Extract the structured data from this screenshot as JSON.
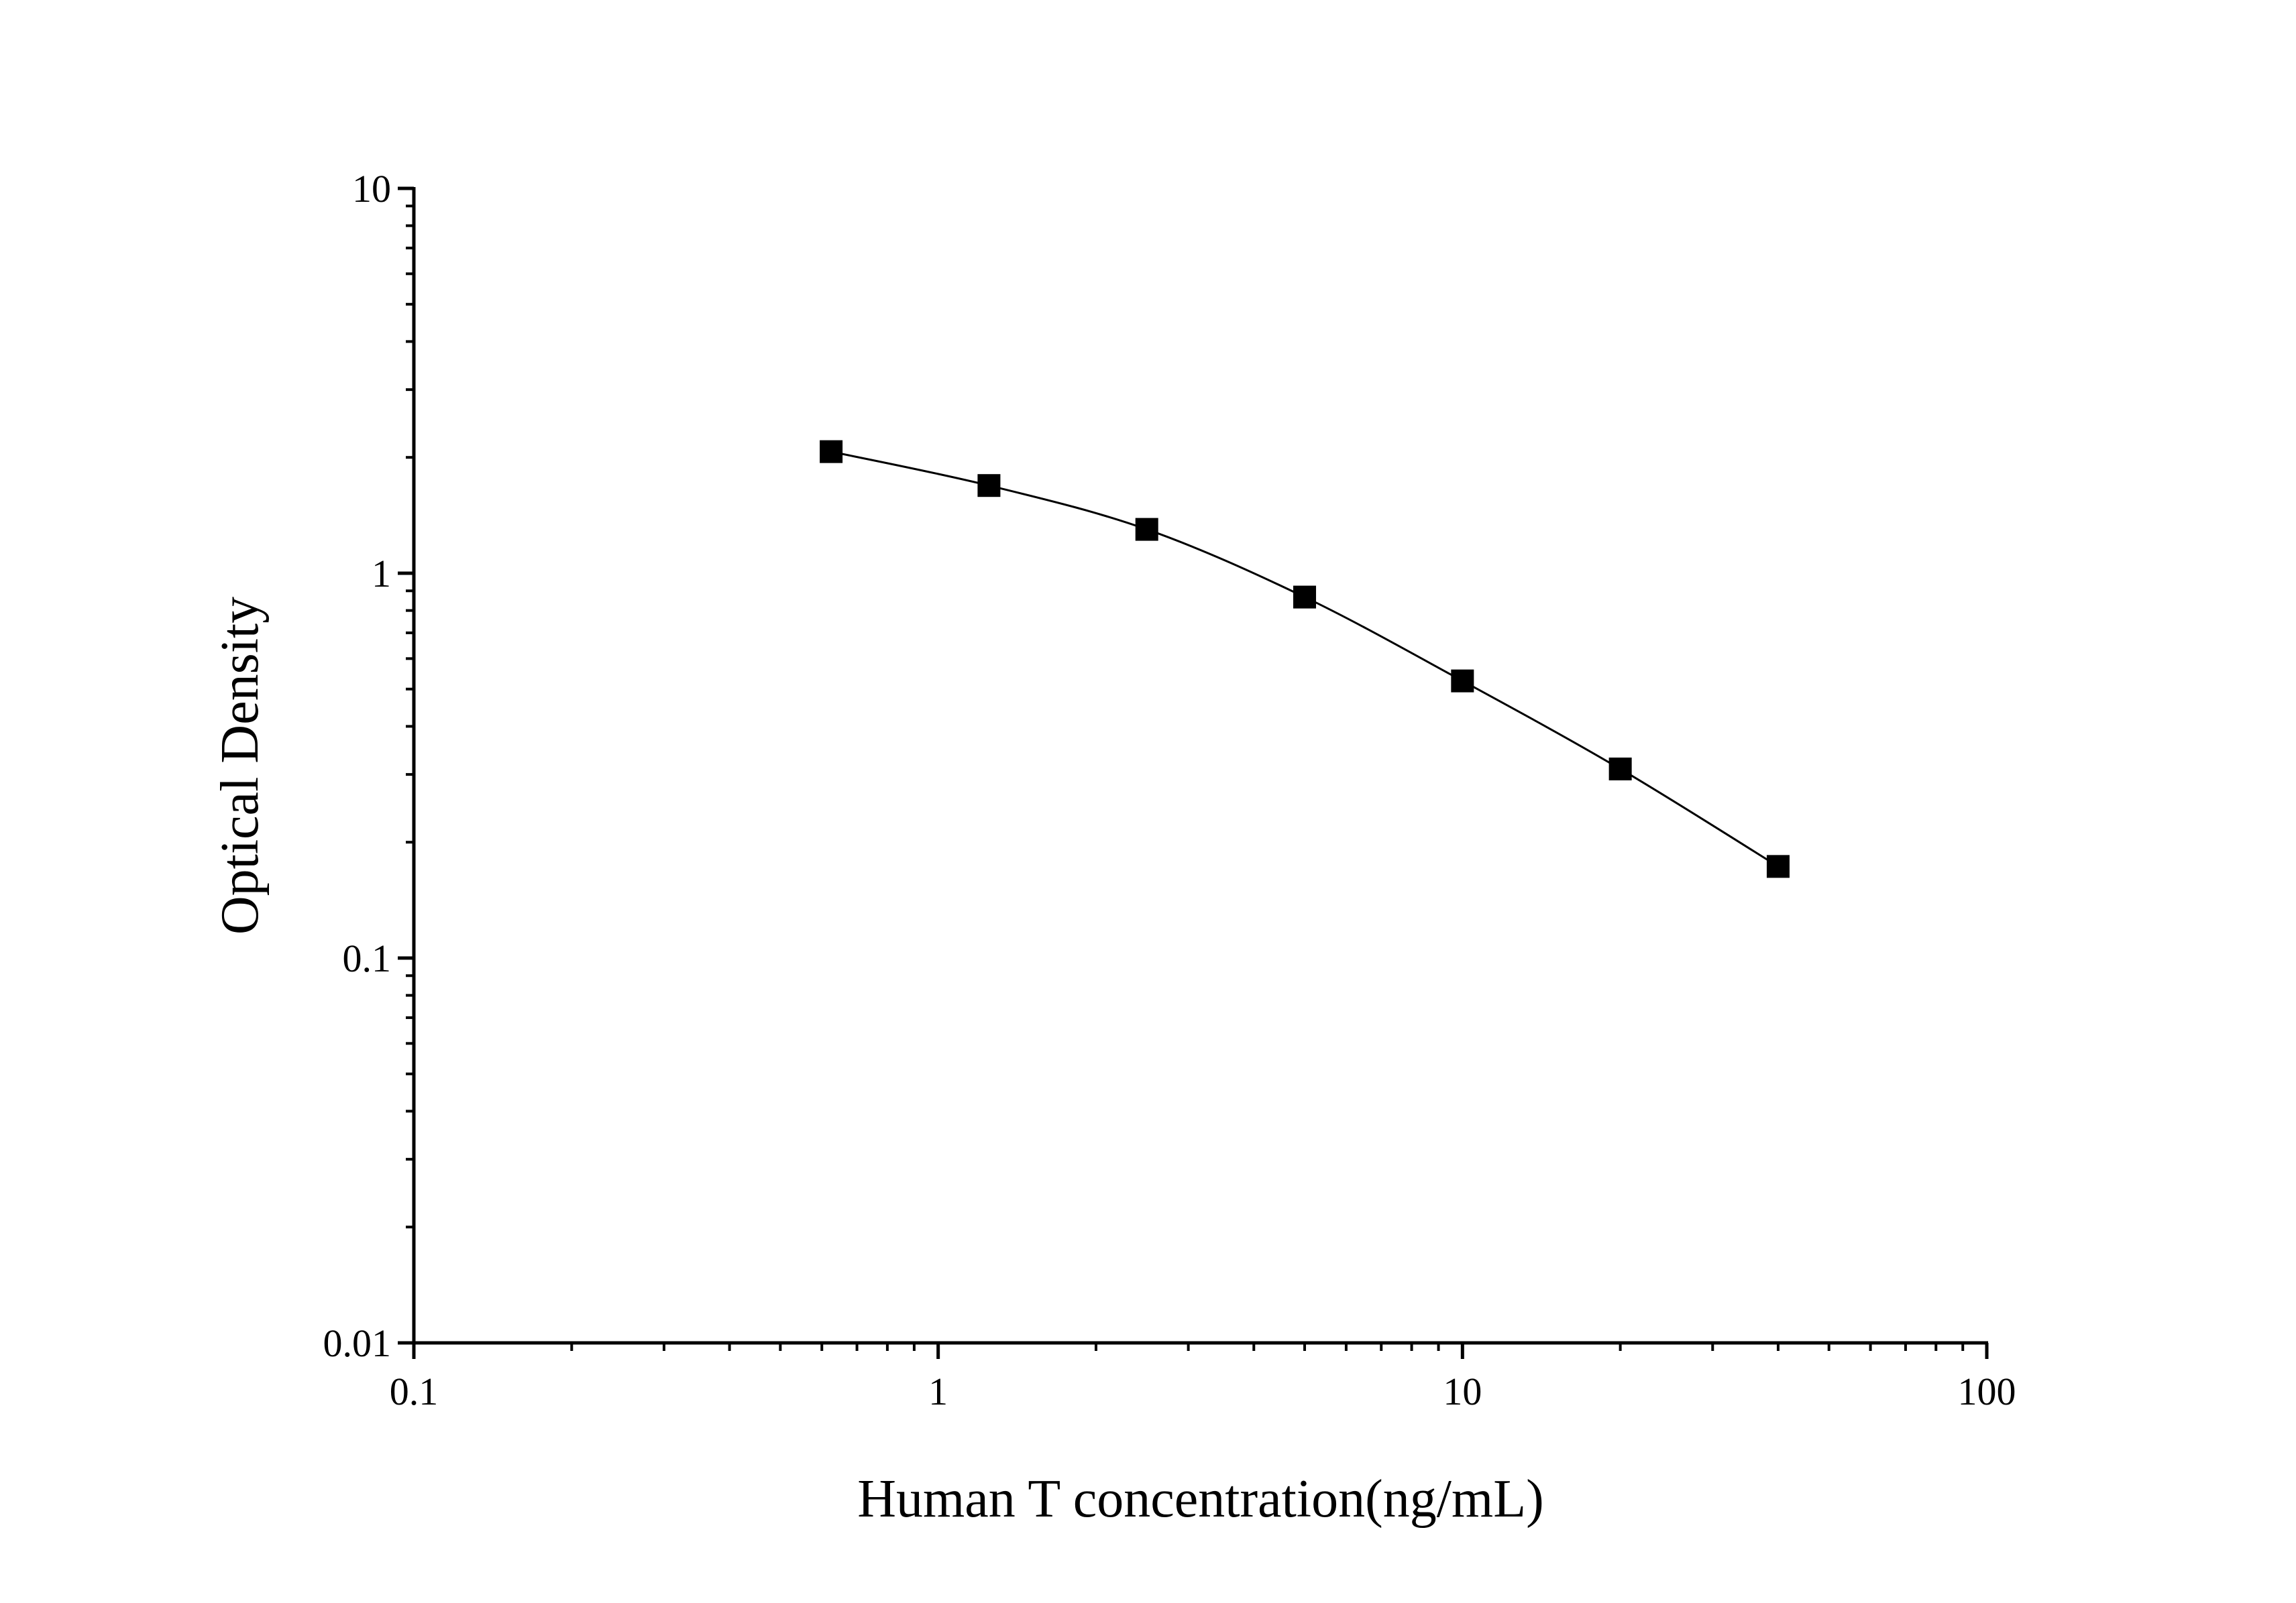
{
  "chart_data": {
    "type": "line",
    "title": "",
    "xlabel": "Human T concentration(ng/mL)",
    "ylabel": "Optical Density",
    "x_scale": "log",
    "y_scale": "log",
    "xlim": [
      0.1,
      100
    ],
    "ylim": [
      0.01,
      10
    ],
    "x_tick_labels": [
      "0.1",
      "1",
      "10",
      "100"
    ],
    "y_tick_labels": [
      "0.01",
      "0.1",
      "1",
      "10"
    ],
    "grid": false,
    "marker": "square",
    "color": "#000000",
    "series": [
      {
        "x": [
          0.625,
          1.25,
          2.5,
          5,
          10,
          20,
          40
        ],
        "y": [
          2.07,
          1.69,
          1.3,
          0.867,
          0.525,
          0.31,
          0.173
        ]
      }
    ]
  }
}
